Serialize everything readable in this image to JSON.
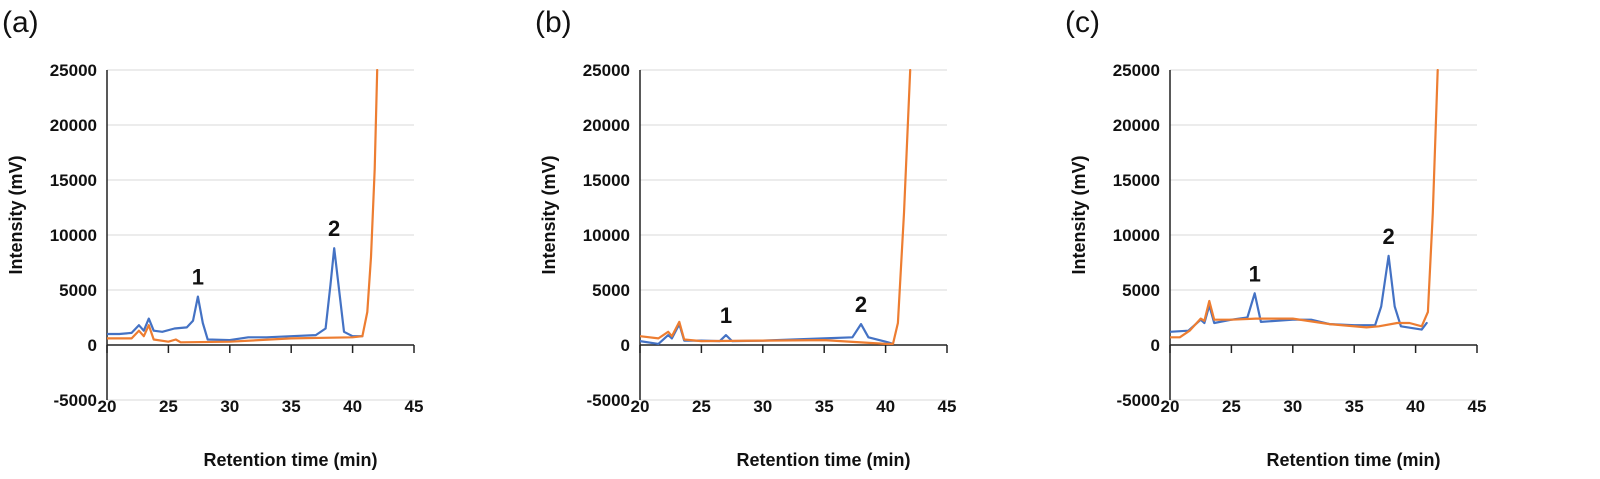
{
  "colors": {
    "blue": "#4472C4",
    "orange": "#ED7D31",
    "grid": "#D9D9D9"
  },
  "chart_data": [
    {
      "type": "line",
      "panel_label": "(a)",
      "xlabel": "Retention time (min)",
      "ylabel": "Intensity (mV)",
      "xlim": [
        20,
        45
      ],
      "ylim": [
        -5000,
        25000
      ],
      "xticks": [
        20,
        25,
        30,
        35,
        40,
        45
      ],
      "yticks": [
        -5000,
        0,
        5000,
        10000,
        15000,
        20000,
        25000
      ],
      "grid": true,
      "annotations": [
        {
          "text": "1",
          "x": 27.4,
          "y": 4400
        },
        {
          "text": "2",
          "x": 38.5,
          "y": 8800
        }
      ],
      "series": [
        {
          "name": "blue",
          "color": "#4472C4",
          "points": [
            [
              20,
              1000
            ],
            [
              21,
              1000
            ],
            [
              22,
              1100
            ],
            [
              22.6,
              1800
            ],
            [
              23,
              1300
            ],
            [
              23.4,
              2400
            ],
            [
              23.8,
              1300
            ],
            [
              24.5,
              1200
            ],
            [
              25.5,
              1500
            ],
            [
              26.5,
              1600
            ],
            [
              27,
              2200
            ],
            [
              27.4,
              4400
            ],
            [
              27.8,
              2000
            ],
            [
              28.2,
              500
            ],
            [
              30,
              450
            ],
            [
              31.5,
              700
            ],
            [
              33,
              700
            ],
            [
              35,
              800
            ],
            [
              37,
              900
            ],
            [
              37.8,
              1500
            ],
            [
              38.2,
              5500
            ],
            [
              38.5,
              8800
            ],
            [
              38.9,
              5000
            ],
            [
              39.3,
              1200
            ],
            [
              40,
              800
            ],
            [
              40.8,
              800
            ]
          ]
        },
        {
          "name": "orange",
          "color": "#ED7D31",
          "points": [
            [
              20,
              600
            ],
            [
              22,
              600
            ],
            [
              22.6,
              1300
            ],
            [
              23,
              800
            ],
            [
              23.4,
              1800
            ],
            [
              23.8,
              500
            ],
            [
              25,
              300
            ],
            [
              25.6,
              500
            ],
            [
              26,
              250
            ],
            [
              30,
              300
            ],
            [
              35,
              600
            ],
            [
              40,
              700
            ],
            [
              40.8,
              800
            ],
            [
              41.2,
              3000
            ],
            [
              41.5,
              8000
            ],
            [
              41.8,
              16000
            ],
            [
              42,
              25000
            ]
          ]
        }
      ]
    },
    {
      "type": "line",
      "panel_label": "(b)",
      "xlabel": "Retention time (min)",
      "ylabel": "Intensity (mV)",
      "xlim": [
        20,
        45
      ],
      "ylim": [
        -5000,
        25000
      ],
      "xticks": [
        20,
        25,
        30,
        35,
        40,
        45
      ],
      "yticks": [
        -5000,
        0,
        5000,
        10000,
        15000,
        20000,
        25000
      ],
      "grid": true,
      "annotations": [
        {
          "text": "1",
          "x": 27.0,
          "y": 900
        },
        {
          "text": "2",
          "x": 38.0,
          "y": 1900
        }
      ],
      "series": [
        {
          "name": "blue",
          "color": "#4472C4",
          "points": [
            [
              20,
              350
            ],
            [
              21.5,
              100
            ],
            [
              22.3,
              900
            ],
            [
              22.6,
              600
            ],
            [
              23.2,
              1900
            ],
            [
              23.6,
              400
            ],
            [
              25,
              400
            ],
            [
              26.5,
              350
            ],
            [
              27,
              900
            ],
            [
              27.5,
              350
            ],
            [
              30,
              400
            ],
            [
              35,
              600
            ],
            [
              37.3,
              700
            ],
            [
              38,
              1900
            ],
            [
              38.6,
              700
            ],
            [
              40,
              300
            ],
            [
              40.5,
              150
            ]
          ]
        },
        {
          "name": "orange",
          "color": "#ED7D31",
          "points": [
            [
              20,
              800
            ],
            [
              21.5,
              600
            ],
            [
              22.3,
              1200
            ],
            [
              22.6,
              800
            ],
            [
              23.2,
              2100
            ],
            [
              23.6,
              500
            ],
            [
              25,
              350
            ],
            [
              30,
              400
            ],
            [
              35,
              450
            ],
            [
              40,
              100
            ],
            [
              40.6,
              100
            ],
            [
              41,
              2000
            ],
            [
              41.5,
              12000
            ],
            [
              42,
              25000
            ]
          ]
        }
      ]
    },
    {
      "type": "line",
      "panel_label": "(c)",
      "xlabel": "Retention time (min)",
      "ylabel": "Intensity (mV)",
      "xlim": [
        20,
        45
      ],
      "ylim": [
        -5000,
        25000
      ],
      "xticks": [
        20,
        25,
        30,
        35,
        40,
        45
      ],
      "yticks": [
        -5000,
        0,
        5000,
        10000,
        15000,
        20000,
        25000
      ],
      "grid": true,
      "annotations": [
        {
          "text": "1",
          "x": 26.9,
          "y": 4700
        },
        {
          "text": "2",
          "x": 37.8,
          "y": 8100
        }
      ],
      "series": [
        {
          "name": "blue",
          "color": "#4472C4",
          "points": [
            [
              20,
              1200
            ],
            [
              21.5,
              1300
            ],
            [
              22.5,
              2300
            ],
            [
              22.8,
              2000
            ],
            [
              23.2,
              3600
            ],
            [
              23.6,
              2000
            ],
            [
              25,
              2300
            ],
            [
              26.3,
              2500
            ],
            [
              26.9,
              4700
            ],
            [
              27.4,
              2100
            ],
            [
              30,
              2300
            ],
            [
              31.5,
              2300
            ],
            [
              33,
              1900
            ],
            [
              35,
              1800
            ],
            [
              36.7,
              1800
            ],
            [
              37.2,
              3500
            ],
            [
              37.8,
              8100
            ],
            [
              38.3,
              3500
            ],
            [
              38.8,
              1700
            ],
            [
              40.5,
              1400
            ],
            [
              40.9,
              2000
            ]
          ]
        },
        {
          "name": "orange",
          "color": "#ED7D31",
          "points": [
            [
              20,
              700
            ],
            [
              20.8,
              700
            ],
            [
              21.6,
              1300
            ],
            [
              22.5,
              2400
            ],
            [
              22.8,
              2200
            ],
            [
              23.2,
              4000
            ],
            [
              23.6,
              2300
            ],
            [
              25,
              2300
            ],
            [
              27,
              2400
            ],
            [
              30,
              2400
            ],
            [
              33,
              1900
            ],
            [
              36,
              1600
            ],
            [
              37,
              1700
            ],
            [
              38.5,
              2000
            ],
            [
              39.5,
              2000
            ],
            [
              40.5,
              1700
            ],
            [
              41,
              3000
            ],
            [
              41.4,
              12000
            ],
            [
              41.8,
              25000
            ]
          ]
        }
      ]
    }
  ]
}
